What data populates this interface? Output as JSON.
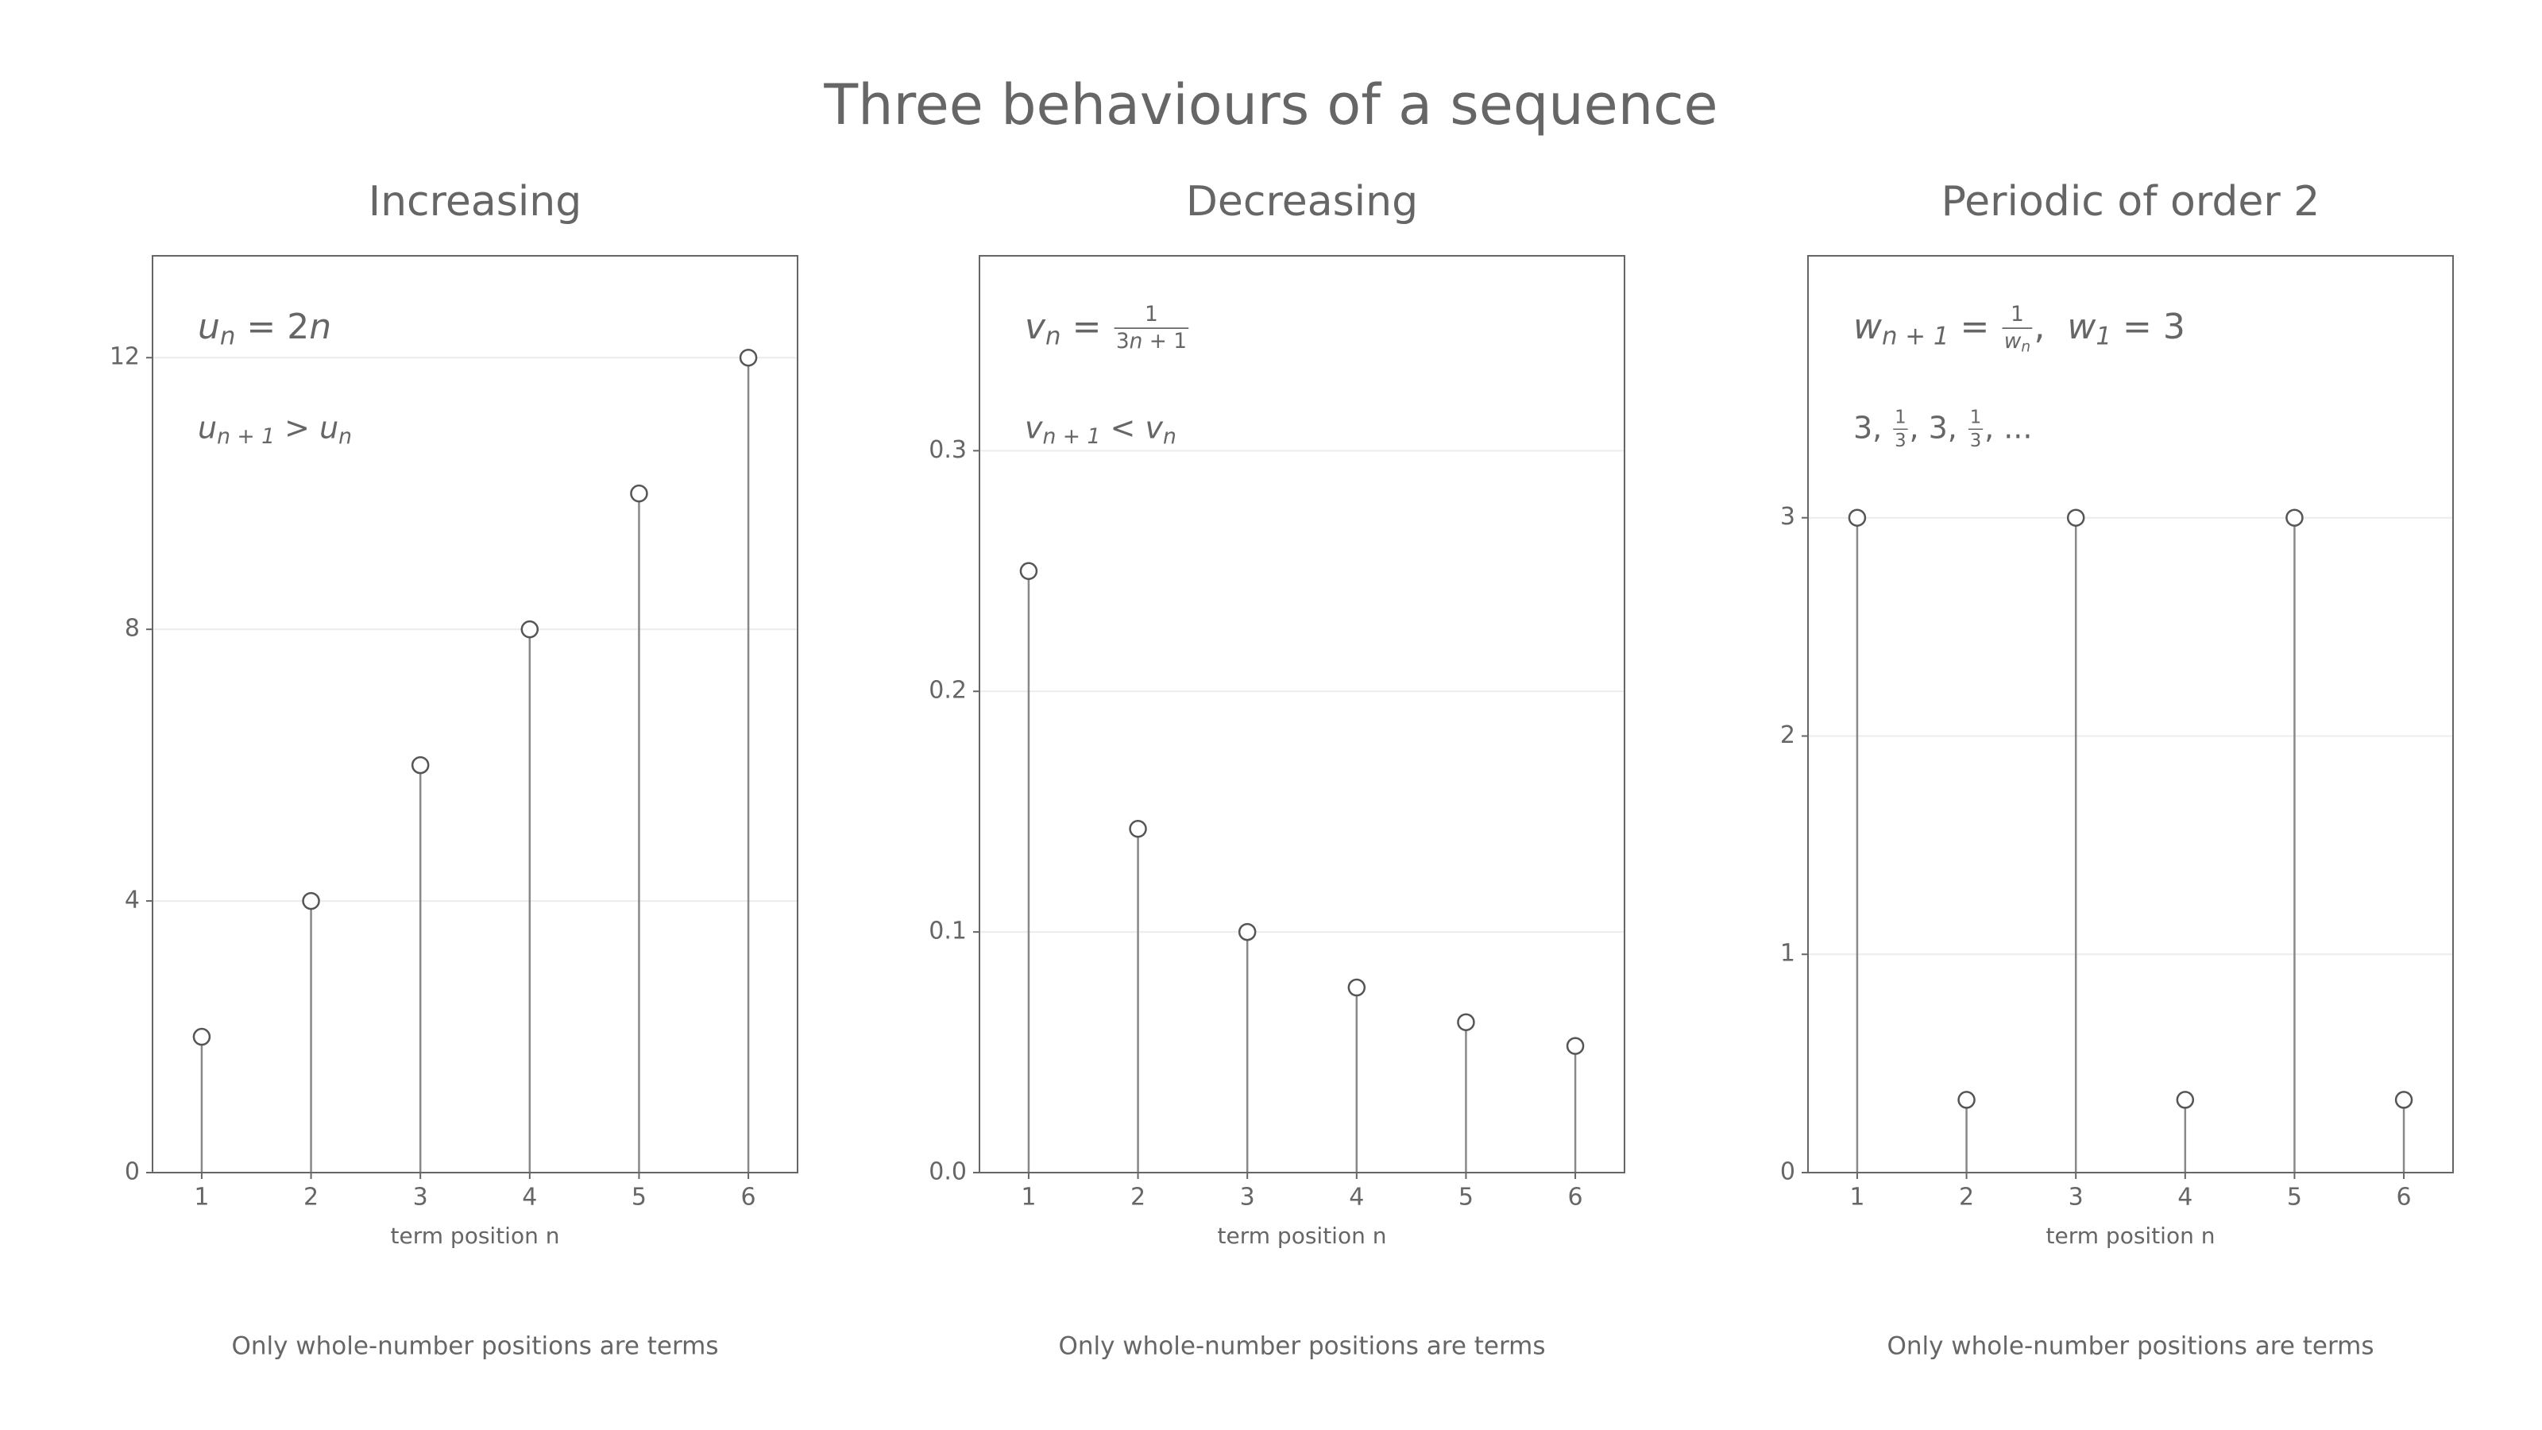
{
  "title": "Three behaviours of a sequence",
  "chart_data": [
    {
      "type": "stem",
      "title": "Increasing",
      "annotations": [
        [
          {
            "i": "u"
          },
          {
            "sub": "n"
          },
          {
            "t": " = 2"
          },
          {
            "i": "n"
          }
        ],
        [
          {
            "i": "u"
          },
          {
            "sub": "n + 1"
          },
          {
            "t": " > "
          },
          {
            "i": "u"
          },
          {
            "sub": "n"
          }
        ]
      ],
      "x": [
        1,
        2,
        3,
        4,
        5,
        6
      ],
      "values": [
        2,
        4,
        6,
        8,
        10,
        12
      ],
      "xlim": [
        0.55,
        6.45
      ],
      "xticks": [
        1,
        2,
        3,
        4,
        5,
        6
      ],
      "ylim": [
        0,
        13.5
      ],
      "yticks": [
        0,
        4,
        8,
        12
      ],
      "xlabel": "term position n",
      "note": "Only whole-number positions are terms",
      "grid": true,
      "color": "#888888"
    },
    {
      "type": "stem",
      "title": "Decreasing",
      "annotations": [
        [
          {
            "i": "v"
          },
          {
            "sub": "n"
          },
          {
            "t": " = "
          },
          {
            "frac": {
              "num": [
                {
                  "t": "1"
                }
              ],
              "den": [
                {
                  "t": "3"
                },
                {
                  "i": "n"
                },
                {
                  "t": " + 1"
                }
              ]
            }
          }
        ],
        [
          {
            "i": "v"
          },
          {
            "sub": "n + 1"
          },
          {
            "t": " < "
          },
          {
            "i": "v"
          },
          {
            "sub": "n"
          }
        ]
      ],
      "x": [
        1,
        2,
        3,
        4,
        5,
        6
      ],
      "values": [
        0.25,
        0.142857,
        0.1,
        0.076923,
        0.0625,
        0.052632
      ],
      "xlim": [
        0.55,
        6.45
      ],
      "xticks": [
        1,
        2,
        3,
        4,
        5,
        6
      ],
      "ylim": [
        0,
        0.381
      ],
      "yticks": [
        {
          "value": 0,
          "label": "0.0"
        },
        0.1,
        0.2,
        0.3
      ],
      "xlabel": "term position n",
      "note": "Only whole-number positions are terms",
      "grid": true,
      "color": "#888888"
    },
    {
      "type": "stem",
      "title": "Periodic of order 2",
      "annotations": [
        [
          {
            "i": "w"
          },
          {
            "sub": "n + 1"
          },
          {
            "t": " = "
          },
          {
            "frac": {
              "num": [
                {
                  "t": "1"
                }
              ],
              "den": [
                {
                  "i": "w"
                },
                {
                  "sub": "n"
                }
              ]
            }
          },
          {
            "t": ",  "
          },
          {
            "i": "w"
          },
          {
            "sub": "1"
          },
          {
            "t": " = 3"
          }
        ],
        [
          {
            "t": "3, "
          },
          {
            "frac": {
              "num": [
                {
                  "t": "1"
                }
              ],
              "den": [
                {
                  "t": "3"
                }
              ]
            }
          },
          {
            "t": ", 3, "
          },
          {
            "frac": {
              "num": [
                {
                  "t": "1"
                }
              ],
              "den": [
                {
                  "t": "3"
                }
              ]
            }
          },
          {
            "t": ", ..."
          }
        ]
      ],
      "x": [
        1,
        2,
        3,
        4,
        5,
        6
      ],
      "values": [
        3,
        0.3333,
        3,
        0.3333,
        3,
        0.3333
      ],
      "xlim": [
        0.55,
        6.45
      ],
      "xticks": [
        1,
        2,
        3,
        4,
        5,
        6
      ],
      "ylim": [
        0,
        4.2
      ],
      "yticks": [
        0,
        1,
        2,
        3
      ],
      "xlabel": "term position n",
      "note": "Only whole-number positions are terms",
      "grid": true,
      "color": "#888888"
    }
  ]
}
